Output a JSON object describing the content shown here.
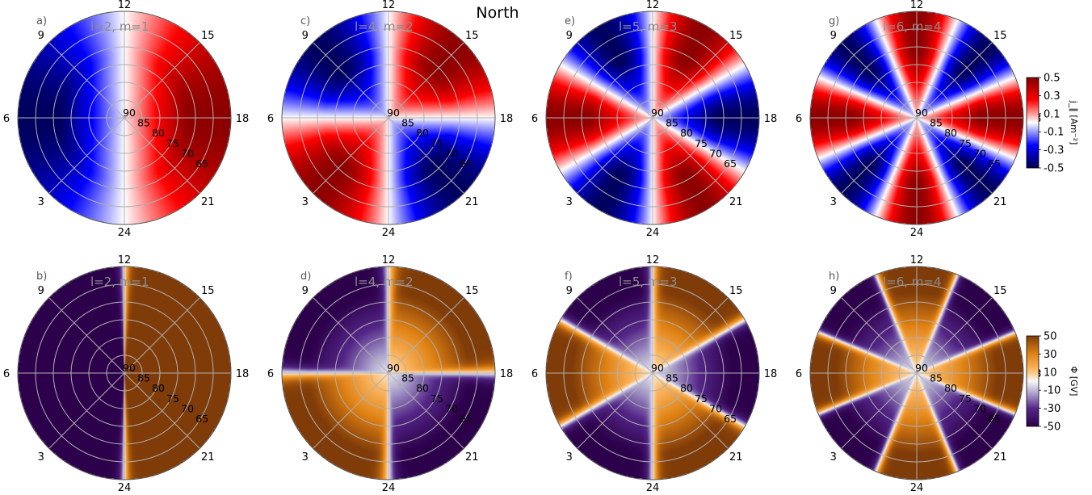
{
  "figure": {
    "title": "North"
  },
  "chart_data": {
    "type": "heatmap",
    "projection": "polar (north hemisphere, magnetic local time vs latitude)",
    "hour_labels": [
      "12",
      "15",
      "9",
      "18",
      "6",
      "21",
      "3",
      "24"
    ],
    "hour_values": [
      12,
      15,
      9,
      18,
      6,
      21,
      3,
      24
    ],
    "latitude_labels": [
      "90",
      "85",
      "80",
      "75",
      "70",
      "65"
    ],
    "latitude_values": [
      90,
      85,
      80,
      75,
      70,
      65
    ],
    "latitude_range": [
      60,
      90
    ],
    "grid": true,
    "rows": [
      {
        "quantity": "j_parallel",
        "colormap": "seismic (blue-white-red)",
        "colorbar": {
          "label": "j_∥ [Am⁻²]",
          "ticks": [
            "0.5",
            "0.3",
            "0.1",
            "-0.1",
            "-0.3",
            "-0.5"
          ],
          "range": [
            -0.5,
            0.5
          ]
        },
        "panels": [
          {
            "letter": "a)",
            "label": "l=2, m=1",
            "l": 2,
            "m": 1
          },
          {
            "letter": "c)",
            "label": "l=4, m=2",
            "l": 4,
            "m": 2
          },
          {
            "letter": "e)",
            "label": "l=5, m=3",
            "l": 5,
            "m": 3
          },
          {
            "letter": "g)",
            "label": "l=6, m=4",
            "l": 6,
            "m": 4
          }
        ]
      },
      {
        "quantity": "Phi",
        "colormap": "PuOr (purple-white-orange)",
        "colorbar": {
          "label": "Φ [GV]",
          "ticks": [
            "50",
            "30",
            "10",
            "-10",
            "-30",
            "-50"
          ],
          "range": [
            -50,
            50
          ]
        },
        "panels": [
          {
            "letter": "b)",
            "label": "l=2, m=1",
            "l": 2,
            "m": 1
          },
          {
            "letter": "d)",
            "label": "l=4, m=2",
            "l": 4,
            "m": 2
          },
          {
            "letter": "f)",
            "label": "l=5, m=3",
            "l": 5,
            "m": 3
          },
          {
            "letter": "h)",
            "label": "l=6, m=4",
            "l": 6,
            "m": 4
          }
        ]
      }
    ]
  }
}
